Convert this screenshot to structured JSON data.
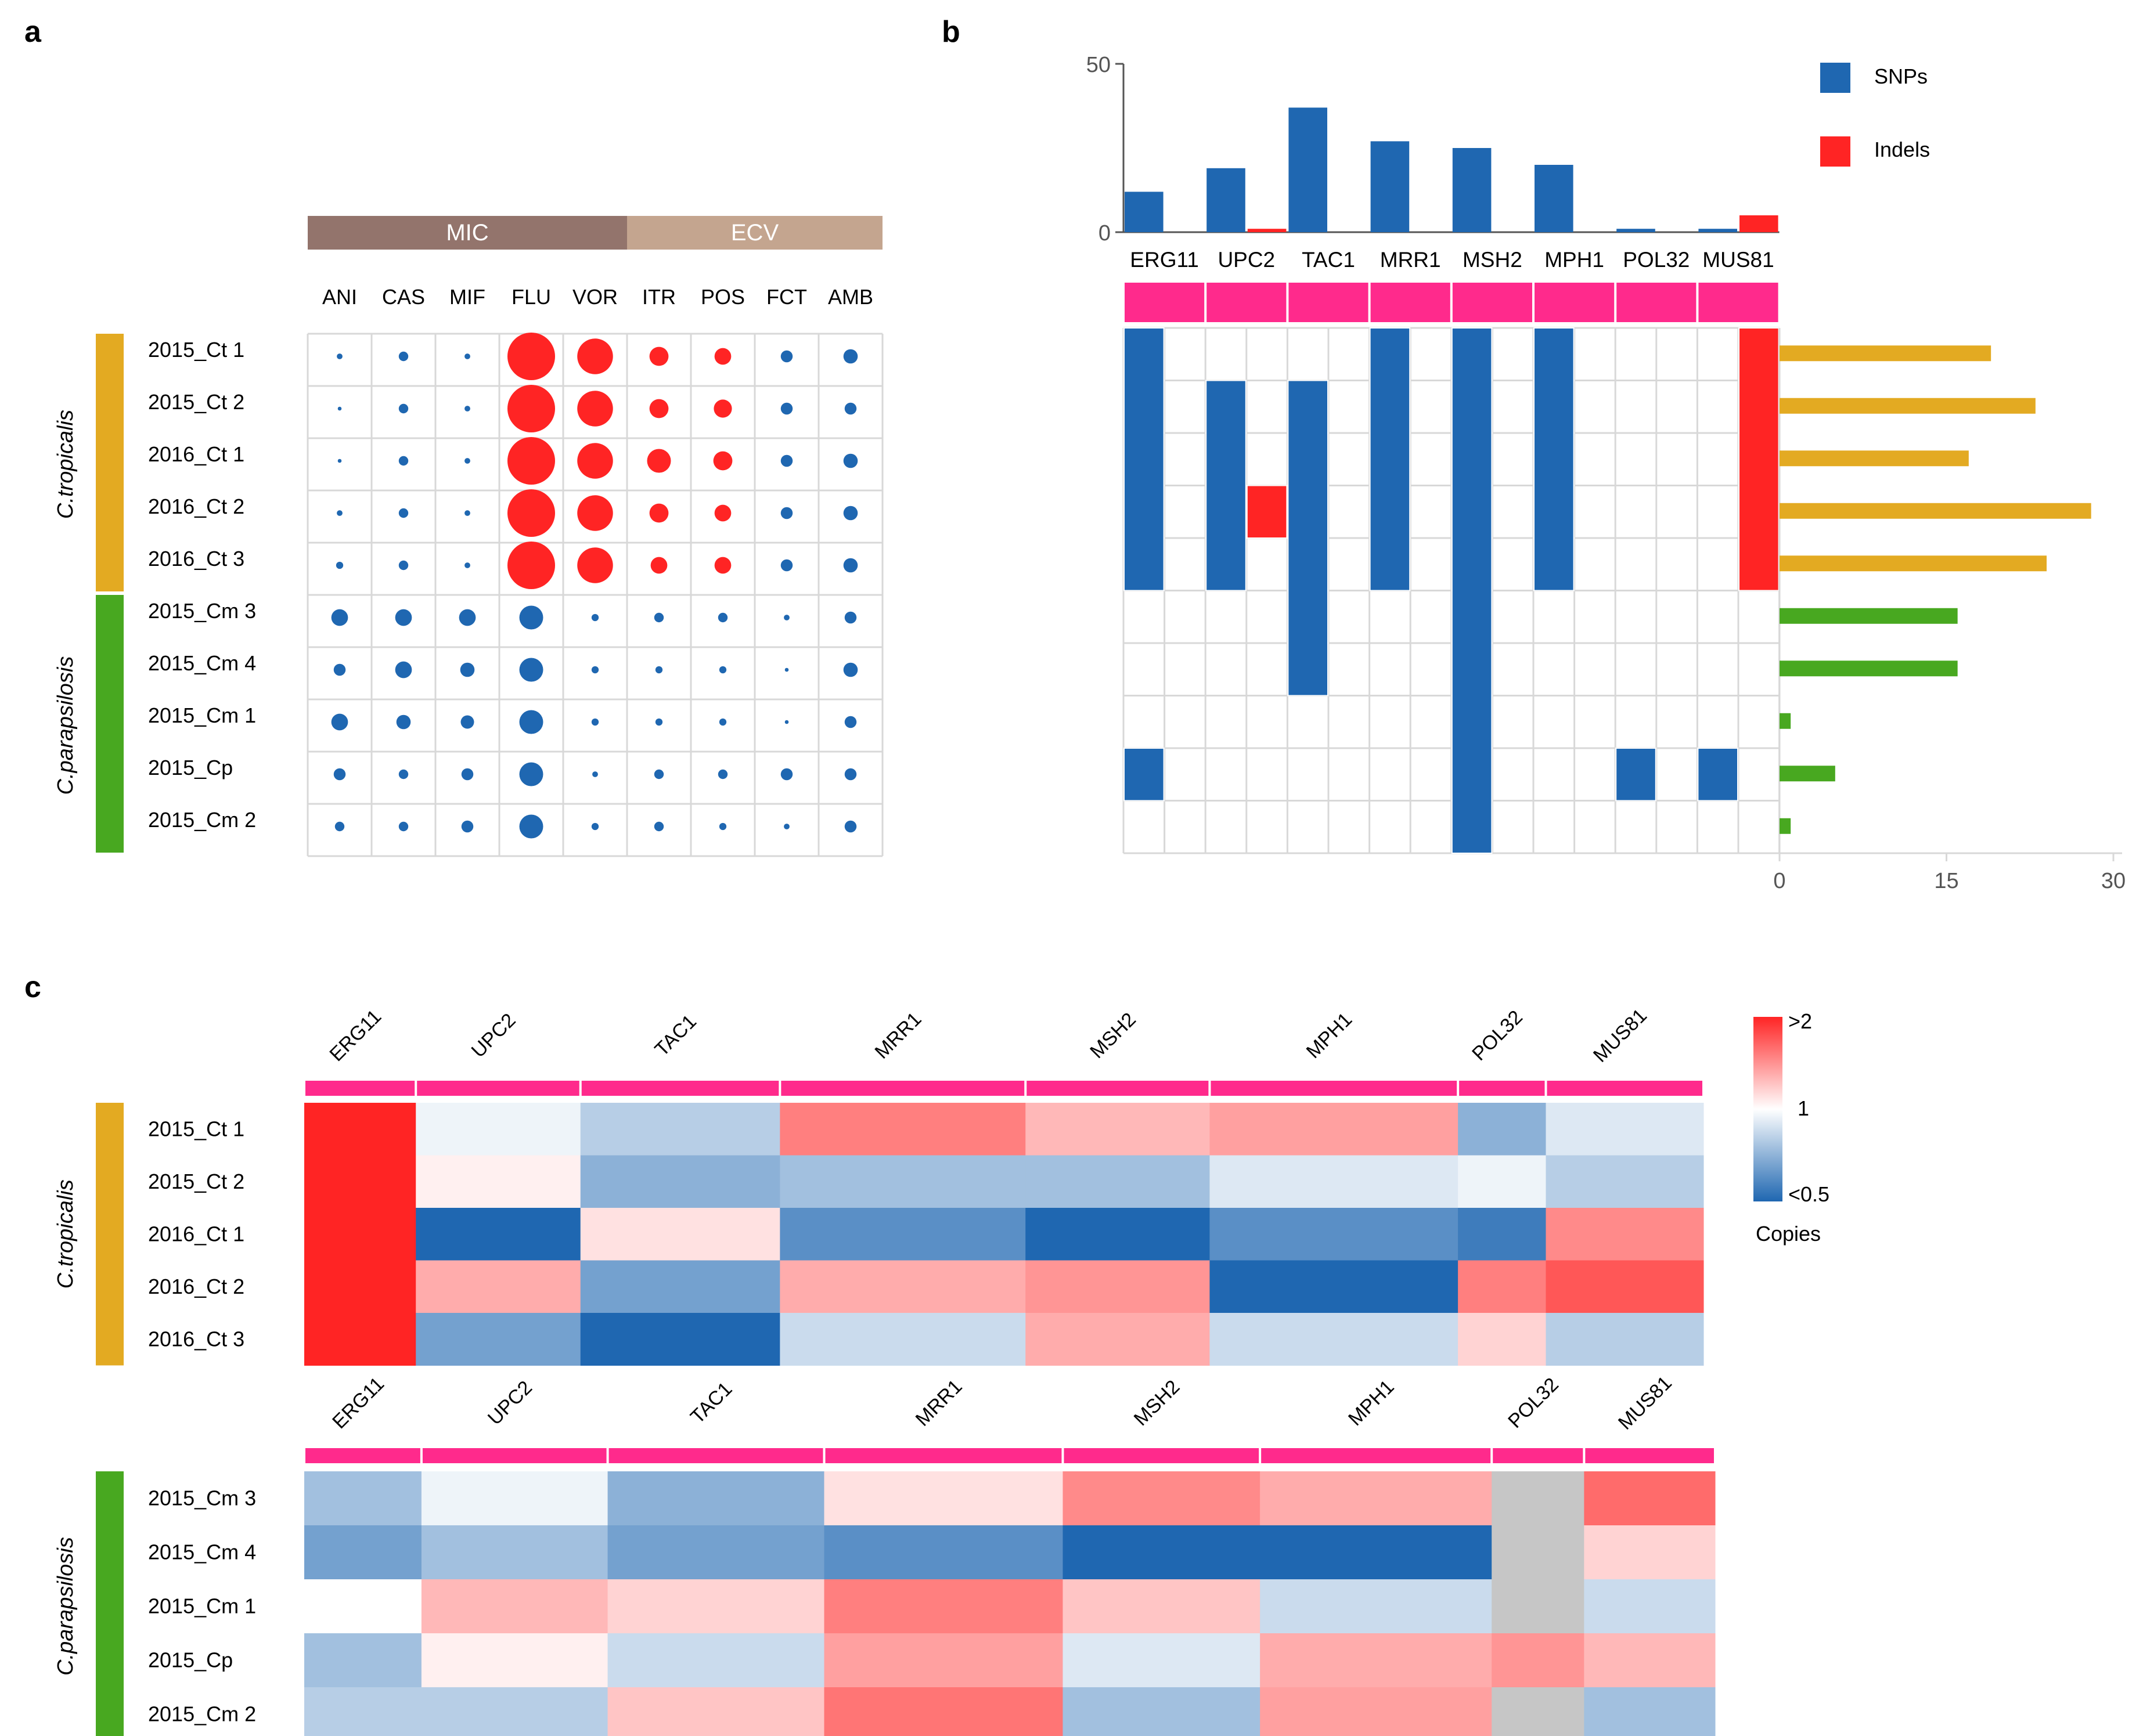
{
  "panels": {
    "a": "a",
    "b": "b",
    "c": "c"
  },
  "colors": {
    "red": "#ff2424",
    "blue": "#1f67b1",
    "pink": "#ff2a8c",
    "mic": "#93746c",
    "ecv": "#c4a58f",
    "tropicalis": "#e3aa22",
    "parapsilosis": "#48a820",
    "grid": "#d8d8d8",
    "na": "#c6c6c6"
  },
  "chart_data": [
    {
      "id": "a",
      "type": "dot-matrix",
      "group_headers": [
        {
          "label": "MIC",
          "span": 5
        },
        {
          "label": "ECV",
          "span": 4
        }
      ],
      "columns": [
        "ANI",
        "CAS",
        "MIF",
        "FLU",
        "VOR",
        "ITR",
        "POS",
        "FCT",
        "AMB"
      ],
      "rows": [
        "2015_Ct 1",
        "2015_Ct 2",
        "2016_Ct 1",
        "2016_Ct 2",
        "2016_Ct 3",
        "2015_Cm 3",
        "2015_Cm 4",
        "2015_Cm 1",
        "2015_Cp",
        "2015_Cm 2"
      ],
      "species": [
        {
          "label": "C.tropicalis",
          "start": 0,
          "count": 5,
          "color": "tropicalis"
        },
        {
          "label": "C.parapsilosis",
          "start": 5,
          "count": 5,
          "color": "parapsilosis"
        }
      ],
      "resistant_columns": [
        "FLU",
        "VOR",
        "ITR",
        "POS"
      ],
      "resistant_rows": 5,
      "size": [
        [
          1.2,
          2,
          1.2,
          10,
          7.5,
          4,
          3.5,
          2.5,
          3
        ],
        [
          0.8,
          2,
          1.2,
          10,
          7.5,
          4,
          3.8,
          2.5,
          2.5
        ],
        [
          0.8,
          2,
          1.2,
          10,
          7.5,
          5,
          4,
          2.5,
          3
        ],
        [
          1.2,
          2,
          1.2,
          10,
          7.5,
          4,
          3.5,
          2.5,
          3
        ],
        [
          1.5,
          2,
          1.2,
          10,
          7.5,
          3.5,
          3.5,
          2.5,
          3
        ],
        [
          3.5,
          3.5,
          3.5,
          5,
          1.5,
          2,
          2,
          1.2,
          2.5
        ],
        [
          2.5,
          3.5,
          3,
          5,
          1.5,
          1.5,
          1.5,
          0.8,
          3
        ],
        [
          3.5,
          3,
          2.8,
          5,
          1.5,
          1.5,
          1.5,
          0.8,
          2.5
        ],
        [
          2.5,
          2,
          2.5,
          5,
          1.2,
          2,
          2,
          2.5,
          2.5
        ],
        [
          2,
          2,
          2.5,
          5,
          1.5,
          2,
          1.5,
          1.2,
          2.5
        ]
      ]
    },
    {
      "id": "b-top",
      "type": "bar",
      "categories": [
        "ERG11",
        "UPC2",
        "TAC1",
        "MRR1",
        "MSH2",
        "MPH1",
        "POL32",
        "MUS81"
      ],
      "series": [
        {
          "name": "SNPs",
          "values": [
            12,
            19,
            37,
            27,
            25,
            20,
            1,
            1
          ]
        },
        {
          "name": "Indels",
          "values": [
            0,
            1,
            0,
            0,
            0,
            0,
            0,
            5
          ]
        }
      ],
      "yticks": [
        0,
        50
      ],
      "ylim": [
        0,
        50
      ]
    },
    {
      "id": "b-matrix",
      "type": "heatmap",
      "n_rows": 10,
      "n_cols": 16,
      "blue_blocks": [
        {
          "col": 0,
          "row0": 0,
          "row1": 5
        },
        {
          "col": 0,
          "row0": 8,
          "row1": 9
        },
        {
          "col": 2,
          "row0": 1,
          "row1": 5
        },
        {
          "col": 4,
          "row0": 1,
          "row1": 7
        },
        {
          "col": 6,
          "row0": 0,
          "row1": 5
        },
        {
          "col": 8,
          "row0": 0,
          "row1": 10
        },
        {
          "col": 10,
          "row0": 0,
          "row1": 5
        },
        {
          "col": 12,
          "row0": 8,
          "row1": 9
        },
        {
          "col": 14,
          "row0": 8,
          "row1": 9
        }
      ],
      "red_blocks": [
        {
          "col": 3,
          "row0": 3,
          "row1": 4
        },
        {
          "col": 15,
          "row0": 0,
          "row1": 5
        }
      ]
    },
    {
      "id": "b-right",
      "type": "bar",
      "values": [
        19,
        23,
        17,
        28,
        24,
        16,
        16,
        1,
        5,
        1
      ],
      "xticks": [
        0,
        15,
        30
      ],
      "xlim": [
        0,
        30
      ]
    },
    {
      "id": "c",
      "type": "heatmap",
      "legend": {
        "max": ">2",
        "mid": "1",
        "min": "<0.5",
        "title": "Copies"
      },
      "blocks": [
        {
          "genes": [
            "ERG11",
            "UPC2",
            "TAC1",
            "MRR1",
            "MSH2",
            "MPH1",
            "POL32",
            "MUS81"
          ],
          "widths": [
            80,
            118,
            143,
            176,
            132,
            178,
            63,
            113
          ],
          "rows": [
            "2015_Ct 1",
            "2015_Ct 2",
            "2016_Ct 1",
            "2016_Ct 2",
            "2016_Ct 3"
          ],
          "species": "C.tropicalis",
          "color": "tropicalis",
          "values": [
            [
              2.2,
              0.95,
              0.8,
              1.5,
              1.25,
              1.35,
              0.7,
              0.9
            ],
            [
              2.2,
              1.05,
              0.7,
              0.75,
              0.75,
              0.9,
              0.95,
              0.8
            ],
            [
              2.1,
              0.45,
              1.1,
              0.6,
              0.4,
              0.6,
              0.55,
              1.45
            ],
            [
              2.2,
              1.3,
              0.65,
              1.3,
              1.4,
              0.35,
              1.5,
              1.7
            ],
            [
              2.2,
              0.65,
              0.35,
              0.85,
              1.3,
              0.85,
              1.15,
              0.8
            ]
          ]
        },
        {
          "genes": [
            "ERG11",
            "UPC2",
            "TAC1",
            "MRR1",
            "MSH2",
            "MPH1",
            "POL32",
            "MUS81"
          ],
          "widths": [
            85,
            135,
            157,
            173,
            143,
            168,
            67,
            95
          ],
          "rows": [
            "2015_Cm 3",
            "2015_Cm 4",
            "2015_Cm 1",
            "2015_Cp",
            "2015_Cm 2"
          ],
          "species": "C.parapsilosis",
          "color": "parapsilosis",
          "values": [
            [
              0.75,
              0.95,
              0.7,
              1.1,
              1.45,
              1.3,
              null,
              1.6
            ],
            [
              0.65,
              0.75,
              0.65,
              0.6,
              0.5,
              0.5,
              null,
              1.15
            ],
            [
              1.0,
              1.25,
              1.15,
              1.5,
              1.2,
              0.85,
              null,
              0.85
            ],
            [
              0.75,
              1.05,
              0.85,
              1.35,
              0.9,
              1.3,
              1.4,
              1.25
            ],
            [
              0.8,
              0.8,
              1.2,
              1.55,
              0.75,
              1.35,
              null,
              0.75
            ]
          ]
        }
      ]
    }
  ]
}
